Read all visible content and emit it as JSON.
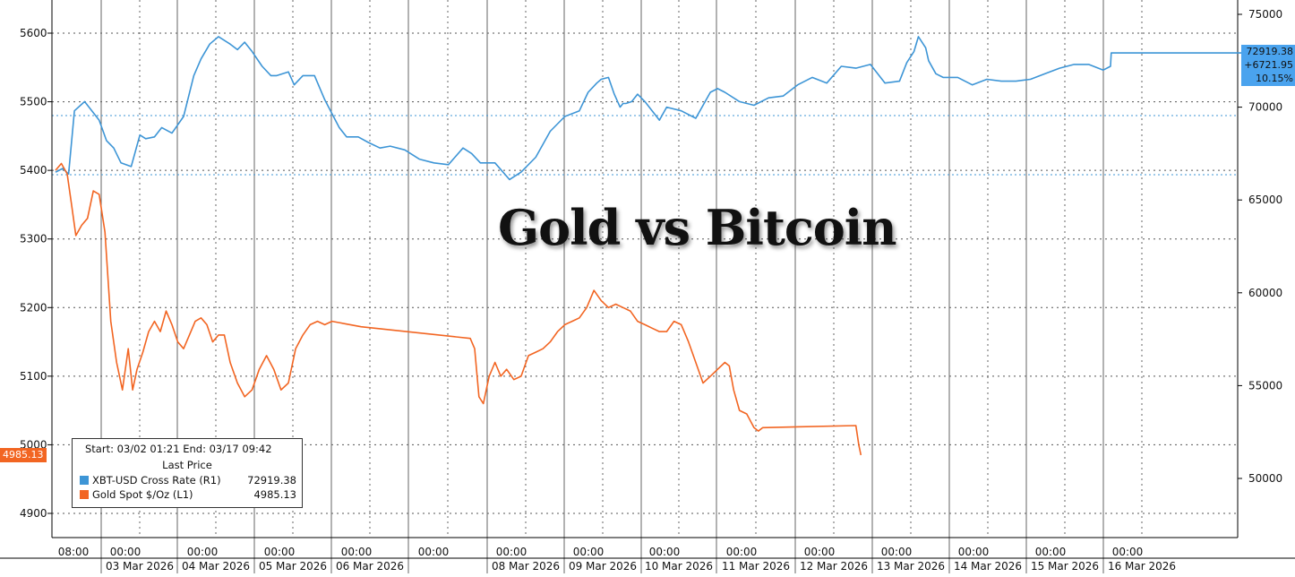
{
  "chart_data": {
    "type": "line",
    "title": "Gold vs Bitcoin",
    "legend": {
      "header": "Start: 03/02 01:21 End: 03/17 09:42",
      "subheader": "Last Price",
      "entries": [
        {
          "label": "XBT-USD Cross Rate  (R1)",
          "value": "72919.38",
          "color": "#3d95d6"
        },
        {
          "label": "Gold Spot $/Oz  (L1)",
          "value": "4985.13",
          "color": "#f26522"
        }
      ],
      "placement": "bottom-left"
    },
    "x_ticks": {
      "top_row": [
        "08:00",
        "00:00",
        "00:00",
        "00:00",
        "00:00",
        "00:00",
        "00:00",
        "00:00",
        "00:00",
        "00:00",
        "00:00",
        "00:00",
        "00:00",
        "00:00",
        "00:00"
      ],
      "bottom_row": [
        "03 Mar 2026",
        "04 Mar 2026",
        "05 Mar 2026",
        "06 Mar 2026",
        "08 Mar 2026",
        "09 Mar 2026",
        "10 Mar 2026",
        "11 Mar 2026",
        "12 Mar 2026",
        "13 Mar 2026",
        "14 Mar 2026",
        "15 Mar 2026",
        "16 Mar 2026"
      ]
    },
    "left_axis": {
      "ticks": [
        "5600",
        "5500",
        "5400",
        "5300",
        "5200",
        "5100",
        "5000",
        "4900"
      ],
      "ylim": [
        4850,
        5650
      ]
    },
    "right_axis": {
      "ticks": [
        "75000",
        "70000",
        "65000",
        "60000",
        "55000",
        "50000"
      ],
      "ylim": [
        47500,
        75500
      ]
    },
    "last_value_tags": {
      "gold": "4985.13",
      "btc": [
        "72919.38",
        "+6721.95",
        "10.15%"
      ]
    },
    "series": [
      {
        "name": "XBT-USD Cross Rate",
        "axis": "right",
        "color": "#3d95d6",
        "x": [
          0,
          0.5,
          0.9,
          1.3,
          2.0,
          2.5,
          3.0,
          3.5,
          4.0,
          4.5,
          5.2,
          5.8,
          6.2,
          6.8,
          7.3,
          8.0,
          8.8,
          9.5,
          10.0,
          10.6,
          11.2,
          12.0,
          12.5,
          13.0,
          13.5,
          14.2,
          14.8,
          15.2,
          16.0,
          16.4,
          17.0,
          17.8,
          18.5,
          19.5,
          20.0,
          20.8,
          21.5,
          22.3,
          23.0,
          24.0,
          25.0,
          26.0,
          27.0,
          28.0,
          28.6,
          29.2,
          30.2,
          31.2,
          32.0,
          33.0,
          34.0,
          35.0,
          36.0,
          36.6,
          37.2,
          37.5,
          38.0,
          38.4,
          38.8,
          39.0,
          39.2,
          39.6,
          40.0,
          40.5,
          41.0,
          41.5,
          42.0,
          43.0,
          44.0,
          45.0,
          45.5,
          46.0,
          47.0,
          48.0,
          49.0,
          50.0,
          51.0,
          52.0,
          53.0,
          54.0,
          55.0,
          56.0,
          57.0,
          58.0,
          58.5,
          59.0,
          59.3,
          59.8,
          60.0,
          60.5,
          61.0,
          62.0,
          63.0,
          64.0,
          65.0,
          66.0,
          67.0,
          68.0,
          69.0,
          70.0,
          71.0,
          72.0,
          72.5,
          72.55,
          73.0,
          74.0,
          75.0,
          76.0,
          77.0,
          78.0,
          79.0,
          80.0,
          81.0,
          82.0,
          83.0,
          84.0,
          85.0,
          85.3,
          86.0,
          87.0,
          88.0,
          89.0,
          90.0,
          92.0,
          94.0,
          95.0
        ],
        "values": [
          66500,
          66700,
          66400,
          69800,
          70300,
          69800,
          69300,
          68200,
          67800,
          67000,
          66800,
          68500,
          68300,
          68400,
          68900,
          68600,
          69500,
          71700,
          72600,
          73400,
          73800,
          73400,
          73100,
          73500,
          73000,
          72200,
          71700,
          71700,
          71900,
          71200,
          71700,
          71700,
          70400,
          68900,
          68400,
          68400,
          68100,
          67800,
          67900,
          67700,
          67200,
          67000,
          66900,
          67800,
          67500,
          67000,
          67000,
          66100,
          66500,
          67300,
          68700,
          69500,
          69800,
          70800,
          71300,
          71500,
          71600,
          70700,
          70000,
          70200,
          70200,
          70300,
          70700,
          70300,
          69800,
          69300,
          70000,
          69800,
          69400,
          70800,
          71000,
          70800,
          70300,
          70100,
          70500,
          70600,
          71200,
          71600,
          71300,
          72200,
          72100,
          72300,
          71300,
          71400,
          72400,
          73000,
          73800,
          73200,
          72500,
          71800,
          71600,
          71600,
          71200,
          71500,
          71400,
          71400,
          71500,
          71800,
          72100,
          72300,
          72300,
          72000,
          72200,
          72920,
          72920,
          72920,
          72920,
          72920,
          72920,
          72920,
          72920,
          72920,
          72920,
          72920,
          72920,
          72920,
          72920,
          72920,
          72920,
          72920,
          72920,
          72920,
          72920,
          72920,
          72920,
          72920
        ]
      },
      {
        "name": "Gold Spot $/Oz",
        "axis": "left",
        "color": "#f26522",
        "x": [
          0,
          0.4,
          0.8,
          1.1,
          1.4,
          1.8,
          2.2,
          2.6,
          3.0,
          3.4,
          3.8,
          4.2,
          4.6,
          5.0,
          5.3,
          5.6,
          6.0,
          6.4,
          6.8,
          7.2,
          7.6,
          8.0,
          8.4,
          8.8,
          9.2,
          9.6,
          10.0,
          10.4,
          10.8,
          11.2,
          11.6,
          12.0,
          12.5,
          13.0,
          13.5,
          14.0,
          14.5,
          15.0,
          15.5,
          16.0,
          16.5,
          17.0,
          17.5,
          18.0,
          18.5,
          19.0,
          19.5,
          20.0,
          20.5,
          21.0,
          28.5,
          28.8,
          29.1,
          29.4,
          29.8,
          30.2,
          30.6,
          31.0,
          31.5,
          32.0,
          32.5,
          33.0,
          33.5,
          34.0,
          34.5,
          35.0,
          35.5,
          36.0,
          36.5,
          37.0,
          37.5,
          38.0,
          38.5,
          39.0,
          39.5,
          40.0,
          40.5,
          41.0,
          41.5,
          42.0,
          42.5,
          43.0,
          43.5,
          44.0,
          44.5,
          45.0,
          45.5,
          46.0,
          46.3,
          46.6,
          47.0,
          47.5,
          48.0,
          48.3,
          48.6,
          55.0,
          55.2,
          55.35
        ],
        "values": [
          5400,
          5410,
          5395,
          5350,
          5305,
          5320,
          5330,
          5370,
          5365,
          5310,
          5180,
          5120,
          5080,
          5140,
          5080,
          5110,
          5135,
          5165,
          5180,
          5165,
          5195,
          5175,
          5150,
          5140,
          5160,
          5180,
          5185,
          5175,
          5150,
          5160,
          5160,
          5120,
          5090,
          5070,
          5080,
          5110,
          5130,
          5110,
          5080,
          5090,
          5140,
          5160,
          5175,
          5180,
          5175,
          5180,
          5178,
          5176,
          5174,
          5172,
          5155,
          5140,
          5070,
          5060,
          5100,
          5120,
          5100,
          5110,
          5095,
          5100,
          5130,
          5135,
          5140,
          5150,
          5165,
          5175,
          5180,
          5185,
          5200,
          5225,
          5210,
          5200,
          5205,
          5200,
          5195,
          5180,
          5175,
          5170,
          5165,
          5165,
          5180,
          5175,
          5150,
          5120,
          5090,
          5100,
          5110,
          5120,
          5115,
          5080,
          5050,
          5045,
          5025,
          5020,
          5025,
          5028,
          5000,
          4985
        ]
      }
    ]
  }
}
